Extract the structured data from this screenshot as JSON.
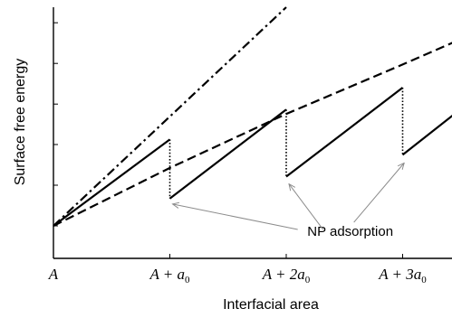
{
  "chart_data": {
    "type": "line",
    "title": "",
    "xlabel": "Interfacial area",
    "ylabel": "Surface free energy",
    "xlim": [
      0,
      3.43
    ],
    "ylim": [
      0,
      1.0
    ],
    "grid": false,
    "y_tick_labels_shown": false,
    "x_ticks": [
      {
        "value": 0,
        "base": "A",
        "suffix": ""
      },
      {
        "value": 1,
        "base": "A + a",
        "sub": "0",
        "prefix_coef": ""
      },
      {
        "value": 2,
        "base": "A + 2a",
        "sub": "0"
      },
      {
        "value": 3,
        "base": "A + 3a",
        "sub": "0"
      }
    ],
    "y_ticks": [
      0.0,
      0.186,
      0.372,
      0.557,
      0.743,
      0.929
    ],
    "series": [
      {
        "style": "dash-dot",
        "x": [
          0,
          2.0
        ],
        "y": [
          0,
          1.0
        ]
      },
      {
        "style": "dashed",
        "x": [
          0,
          1,
          2,
          3,
          3.43
        ],
        "y": [
          0,
          0.265,
          0.512,
          0.738,
          0.838
        ]
      },
      {
        "style": "solid",
        "segments": [
          {
            "x": [
              0,
              1
            ],
            "y": [
              0,
              0.395
            ]
          },
          {
            "x": [
              1,
              2
            ],
            "y": [
              0.125,
              0.532
            ]
          },
          {
            "x": [
              2,
              3
            ],
            "y": [
              0.225,
              0.632
            ]
          },
          {
            "x": [
              3,
              3.43
            ],
            "y": [
              0.325,
              0.505
            ]
          }
        ],
        "drops": [
          {
            "x": 1,
            "from": 0.395,
            "to": 0.125
          },
          {
            "x": 2,
            "from": 0.532,
            "to": 0.225
          },
          {
            "x": 3,
            "from": 0.632,
            "to": 0.325
          }
        ]
      }
    ],
    "annotations": [
      {
        "text": "NP adsorption",
        "label_at": {
          "x": 2.55,
          "y": -0.025
        },
        "arrows_to": [
          {
            "x": 1.0,
            "y": 0.108
          },
          {
            "x": 2.0,
            "y": 0.2
          },
          {
            "x": 2.99,
            "y": 0.296
          }
        ]
      }
    ]
  }
}
